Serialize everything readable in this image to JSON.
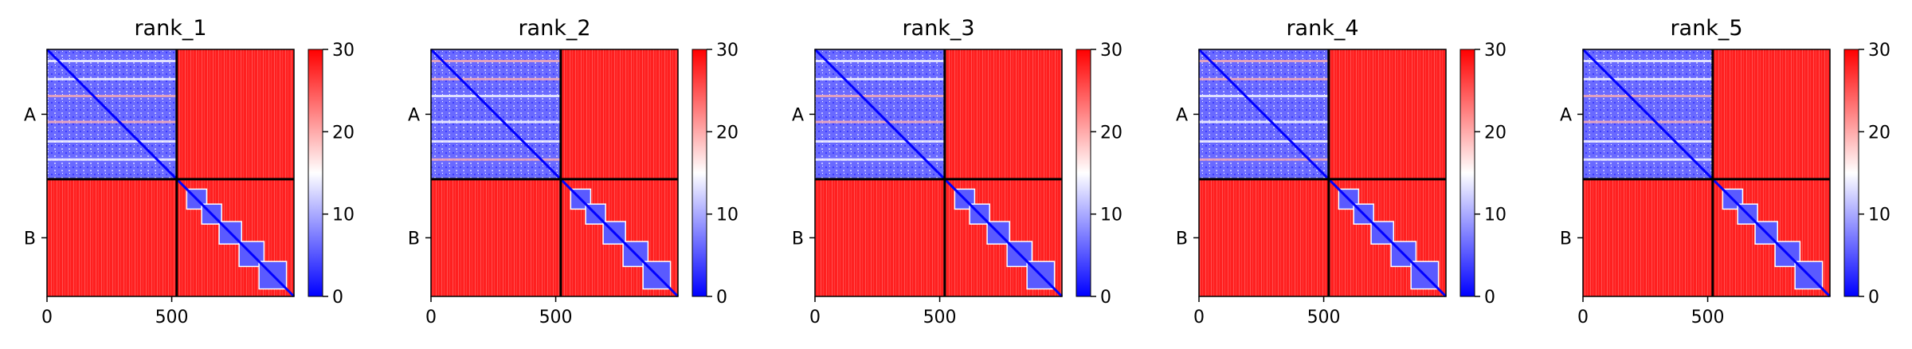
{
  "chart_data": [
    {
      "type": "heatmap",
      "title": "rank_1",
      "chains": [
        "A",
        "B"
      ],
      "chain_boundary": 520,
      "xlim": [
        0,
        990
      ],
      "xticks": [
        0,
        500
      ],
      "colorbar": {
        "min": 0,
        "max": 30,
        "ticks": [
          0,
          10,
          20,
          30
        ],
        "colors": [
          "#0000ff",
          "#ffffff",
          "#ff0000"
        ]
      }
    },
    {
      "type": "heatmap",
      "title": "rank_2",
      "chains": [
        "A",
        "B"
      ],
      "chain_boundary": 520,
      "xlim": [
        0,
        990
      ],
      "xticks": [
        0,
        500
      ],
      "colorbar": {
        "min": 0,
        "max": 30,
        "ticks": [
          0,
          10,
          20,
          30
        ],
        "colors": [
          "#0000ff",
          "#ffffff",
          "#ff0000"
        ]
      }
    },
    {
      "type": "heatmap",
      "title": "rank_3",
      "chains": [
        "A",
        "B"
      ],
      "chain_boundary": 520,
      "xlim": [
        0,
        990
      ],
      "xticks": [
        0,
        500
      ],
      "colorbar": {
        "min": 0,
        "max": 30,
        "ticks": [
          0,
          10,
          20,
          30
        ],
        "colors": [
          "#0000ff",
          "#ffffff",
          "#ff0000"
        ]
      }
    },
    {
      "type": "heatmap",
      "title": "rank_4",
      "chains": [
        "A",
        "B"
      ],
      "chain_boundary": 520,
      "xlim": [
        0,
        990
      ],
      "xticks": [
        0,
        500
      ],
      "colorbar": {
        "min": 0,
        "max": 30,
        "ticks": [
          0,
          10,
          20,
          30
        ],
        "colors": [
          "#0000ff",
          "#ffffff",
          "#ff0000"
        ]
      }
    },
    {
      "type": "heatmap",
      "title": "rank_5",
      "chains": [
        "A",
        "B"
      ],
      "chain_boundary": 520,
      "xlim": [
        0,
        990
      ],
      "xticks": [
        0,
        500
      ],
      "colorbar": {
        "min": 0,
        "max": 30,
        "ticks": [
          0,
          10,
          20,
          30
        ],
        "colors": [
          "#0000ff",
          "#ffffff",
          "#ff0000"
        ]
      }
    }
  ]
}
